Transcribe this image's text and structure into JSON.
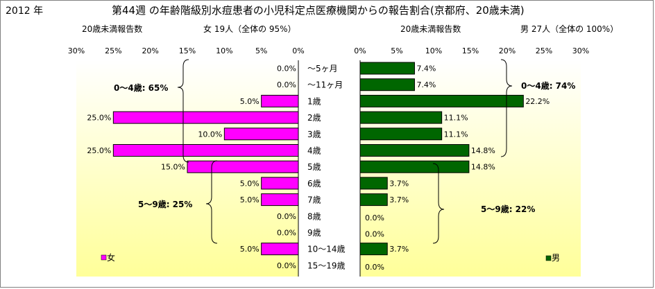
{
  "header": {
    "year": "2012 年",
    "title": "第44週 の年齢階級別水痘患者の小児科定点医療機関からの報告割合(京都府、20歳未満)"
  },
  "chart_data": [
    {
      "type": "bar",
      "orientation": "horizontal",
      "direction": "right-to-left",
      "subtitle_left": "20歳未満報告数",
      "subtitle_right": "女 19人（全体の 95%）",
      "categories": [
        "～5ヶ月",
        "～11ヶ月",
        "1歳",
        "2歳",
        "3歳",
        "4歳",
        "5歳",
        "6歳",
        "7歳",
        "8歳",
        "9歳",
        "10～14歳",
        "15～19歳"
      ],
      "values": [
        0.0,
        0.0,
        5.0,
        25.0,
        10.0,
        25.0,
        15.0,
        5.0,
        5.0,
        0.0,
        0.0,
        5.0,
        0.0
      ],
      "value_labels": [
        "0.0%",
        "0.0%",
        "5.0%",
        "25.0%",
        "10.0%",
        "25.0%",
        "15.0%",
        "5.0%",
        "5.0%",
        "0.0%",
        "0.0%",
        "5.0%",
        "0.0%"
      ],
      "xlim": [
        0,
        30
      ],
      "ticks": [
        "30%",
        "25%",
        "20%",
        "15%",
        "10%",
        "5%",
        "0%"
      ],
      "legend": "女",
      "annotations": [
        "0～4歳: 65%",
        "5～9歳: 25%"
      ],
      "colors": {
        "bar": "#FF00FF",
        "edge": "#000000",
        "bg_top": "#FFFFFF",
        "bg_bottom": "#FFFF99"
      }
    },
    {
      "type": "bar",
      "orientation": "horizontal",
      "direction": "left-to-right",
      "subtitle_left": "20歳未満報告数",
      "subtitle_right": "男 27人（全体の 100%）",
      "values": [
        7.4,
        7.4,
        22.2,
        11.1,
        11.1,
        14.8,
        14.8,
        3.7,
        3.7,
        0.0,
        0.0,
        3.7,
        0.0
      ],
      "value_labels": [
        "7.4%",
        "7.4%",
        "22.2%",
        "11.1%",
        "11.1%",
        "14.8%",
        "14.8%",
        "3.7%",
        "3.7%",
        "0.0%",
        "0.0%",
        "3.7%",
        "0.0%"
      ],
      "xlim": [
        0,
        30
      ],
      "ticks": [
        "0%",
        "5%",
        "10%",
        "15%",
        "20%",
        "25%",
        "30%"
      ],
      "legend": "男",
      "annotations": [
        "0～4歳: 74%",
        "5～9歳: 22%"
      ],
      "colors": {
        "bar": "#006600",
        "edge": "#000000",
        "bg_top": "#FFFFFF",
        "bg_bottom": "#FFFF99"
      }
    }
  ]
}
